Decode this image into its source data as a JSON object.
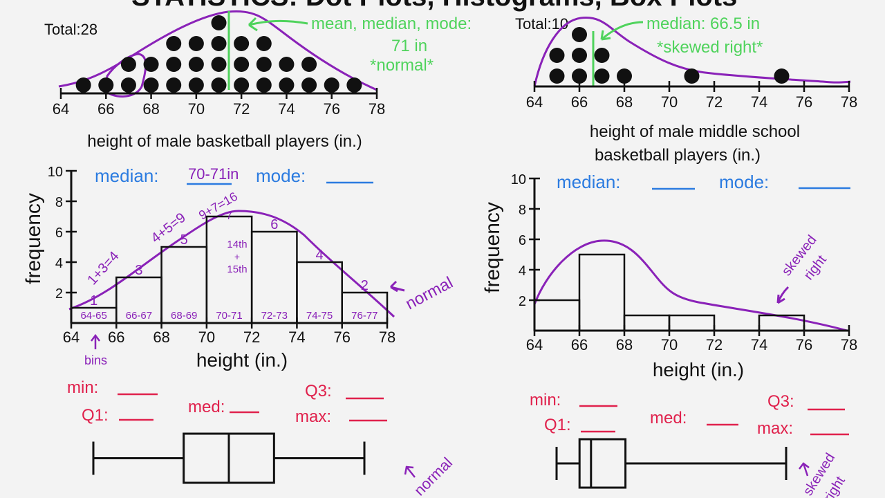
{
  "title": "STATISTICS: Dot Plots, Histograms, Box Plots",
  "colors": {
    "ink": "#111111",
    "curve_purple": "#8a22b8",
    "annotation_green": "#4fd35c",
    "center_blue": "#2b7be0",
    "fivenum_red": "#e0214c",
    "background": "#f3f3f3"
  },
  "chart_data": [
    {
      "type": "scatter",
      "kind": "dot plot",
      "total_label": "Total:28",
      "xlabel": "height of male basketball players (in.)",
      "xlim": [
        64,
        78
      ],
      "x_ticks": [
        "64",
        "66",
        "68",
        "70",
        "72",
        "74",
        "76",
        "78"
      ],
      "x": [
        65,
        66,
        67,
        68,
        69,
        70,
        71,
        72,
        73,
        74,
        75,
        76,
        77
      ],
      "counts": [
        1,
        1,
        2,
        2,
        3,
        3,
        4,
        3,
        3,
        2,
        2,
        1,
        1
      ],
      "center_line": 71,
      "annotations": {
        "line1": "mean, median, mode:",
        "line2": "71 in",
        "line3": "*normal*"
      }
    },
    {
      "type": "scatter",
      "kind": "dot plot",
      "total_label": "Total:10",
      "xlabel_line1": "height of male middle school",
      "xlabel_line2": "basketball players (in.)",
      "xlim": [
        64,
        78
      ],
      "x_ticks": [
        "64",
        "66",
        "68",
        "70",
        "72",
        "74",
        "76",
        "78"
      ],
      "x": [
        65,
        66,
        67,
        68,
        71,
        75
      ],
      "counts": [
        2,
        3,
        2,
        1,
        1,
        1
      ],
      "center_line": 66.5,
      "annotations": {
        "line1": "median: 66.5 in",
        "line2": "*skewed right*"
      }
    },
    {
      "type": "bar",
      "kind": "histogram",
      "xlabel": "height (in.)",
      "ylabel": "frequency",
      "xlim": [
        64,
        78
      ],
      "ylim": [
        0,
        10
      ],
      "x_ticks": [
        "64",
        "66",
        "68",
        "70",
        "72",
        "74",
        "76",
        "78"
      ],
      "y_ticks": [
        "2",
        "4",
        "6",
        "8",
        "10"
      ],
      "bins": [
        [
          64,
          66
        ],
        [
          66,
          68
        ],
        [
          68,
          70
        ],
        [
          70,
          72
        ],
        [
          72,
          74
        ],
        [
          74,
          76
        ],
        [
          76,
          78
        ]
      ],
      "categories": [
        "64-65",
        "66-67",
        "68-69",
        "70-71",
        "72-73",
        "74-75",
        "76-77"
      ],
      "values": [
        1,
        3,
        5,
        7,
        6,
        4,
        2
      ],
      "value_labels": [
        "1",
        "3",
        "5",
        "7",
        "6",
        "4",
        "2"
      ],
      "stats": {
        "median_label": "median:",
        "median_value": "70-71in",
        "mode_label": "mode:"
      },
      "annotations": {
        "sum1": "1+3=4",
        "sum2": "4+5=9",
        "sum3": "9+7=16",
        "pos1": "14th",
        "plus": "+",
        "pos2": "15th",
        "shape": "normal",
        "bins": "bins"
      }
    },
    {
      "type": "bar",
      "kind": "histogram",
      "xlabel": "height (in.)",
      "ylabel": "frequency",
      "xlim": [
        64,
        78
      ],
      "ylim": [
        0,
        10
      ],
      "x_ticks": [
        "64",
        "66",
        "68",
        "70",
        "72",
        "74",
        "76",
        "78"
      ],
      "y_ticks": [
        "2",
        "4",
        "6",
        "8",
        "10"
      ],
      "bins": [
        [
          64,
          66
        ],
        [
          66,
          68
        ],
        [
          68,
          70
        ],
        [
          70,
          72
        ],
        [
          74,
          76
        ]
      ],
      "values": [
        2,
        5,
        1,
        1,
        1
      ],
      "stats": {
        "median_label": "median:",
        "mode_label": "mode:"
      },
      "annotations": {
        "shape_line1": "skewed",
        "shape_line2": "right"
      }
    },
    {
      "type": "box",
      "labels": {
        "min": "min:",
        "q1": "Q1:",
        "med": "med:",
        "q3": "Q3:",
        "max": "max:"
      },
      "min": 65,
      "q1": 69,
      "median": 71,
      "q3": 73,
      "max": 77,
      "annotation": "normal"
    },
    {
      "type": "box",
      "labels": {
        "min": "min:",
        "q1": "Q1:",
        "med": "med:",
        "q3": "Q3:",
        "max": "max:"
      },
      "min": 65,
      "q1": 66,
      "median": 66.5,
      "q3": 68,
      "max": 75,
      "annotation_line1": "skewed",
      "annotation_line2": "right"
    }
  ]
}
